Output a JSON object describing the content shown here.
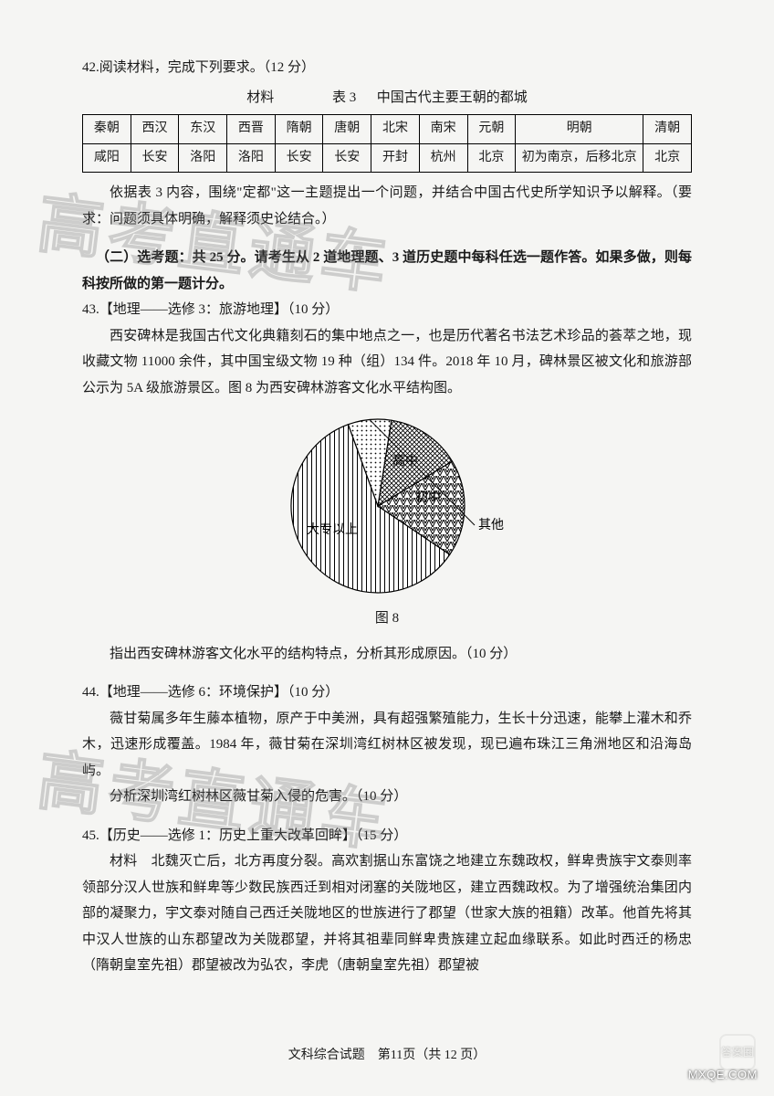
{
  "q42": {
    "stem": "42.阅读材料，完成下列要求。（12 分）",
    "mat_label": "材料",
    "table_label": "表 3",
    "table_title": "中国古代主要王朝的都城",
    "headers": [
      "秦朝",
      "西汉",
      "东汉",
      "西晋",
      "隋朝",
      "唐朝",
      "北宋",
      "南宋",
      "元朝",
      "明朝",
      "清朝"
    ],
    "row": [
      "咸阳",
      "长安",
      "洛阳",
      "洛阳",
      "长安",
      "长安",
      "开封",
      "杭州",
      "北京",
      "初为南京，后移北京",
      "北京"
    ],
    "para": "依据表 3 内容，围绕\"定都\"这一主题提出一个问题，并结合中国古代史所学知识予以解释。（要求：问题须具体明确，解释须史论结合。）"
  },
  "optional": {
    "title": "（二）选考题：共 25 分。请考生从 2 道地理题、3 道历史题中每科任选一题作答。如果多做，则每科按所做的第一题计分。"
  },
  "q43": {
    "stem": "43.【地理——选修 3：旅游地理】（10 分）",
    "para": "西安碑林是我国古代文化典籍刻石的集中地点之一，也是历代著名书法艺术珍品的荟萃之地，现收藏文物 11000 余件，其中国宝级文物 19 种（组）134 件。2018 年 10 月，碑林景区被文化和旅游部公示为 5A 级旅游景区。图 8 为西安碑林游客文化水平结构图。",
    "chart": {
      "type": "pie",
      "categories": [
        "大专以上",
        "高中",
        "初中",
        "其他"
      ],
      "values": [
        60,
        18,
        14,
        8
      ],
      "start_angle_deg": 110,
      "slice_patterns": [
        "vlines",
        "zigzag",
        "grid",
        "dots"
      ],
      "slice_angles_deg": [
        216,
        65,
        50,
        29
      ],
      "radius": 95,
      "stroke": "#000000",
      "background": "#ffffff"
    },
    "fig_label": "图 8",
    "ask": "指出西安碑林游客文化水平的结构特点，分析其形成原因。（10 分）"
  },
  "q44": {
    "stem": "44.【地理——选修 6：环境保护】（10 分）",
    "para": "薇甘菊属多年生藤本植物，原产于中美洲，具有超强繁殖能力，生长十分迅速，能攀上灌木和乔木，迅速形成覆盖。1984 年，薇甘菊在深圳湾红树林区被发现，现已遍布珠江三角洲地区和沿海岛屿。",
    "ask": "分析深圳湾红树林区薇甘菊入侵的危害。（10 分）"
  },
  "q45": {
    "stem": "45.【历史——选修 1：历史上重大改革回眸】（15 分）",
    "para": "材料　北魏灭亡后，北方再度分裂。高欢割据山东富饶之地建立东魏政权，鲜卑贵族宇文泰则率领部分汉人世族和鲜卑等少数民族西迁到相对闭塞的关陇地区，建立西魏政权。为了增强统治集团内部的凝聚力，宇文泰对随自己西迁关陇地区的世族进行了郡望（世家大族的祖籍）改革。他首先将其中汉人世族的山东郡望改为关陇郡望，并将其祖辈同鲜卑贵族建立起血缘联系。如此时西迁的杨忠（隋朝皇室先祖）郡望被改为弘农，李虎（唐朝皇室先祖）郡望被"
  },
  "footer": "文科综合试题　第11页（共 12 页）",
  "watermark": "高考直通车",
  "badges": {
    "answer": "答案圈",
    "site": "MXQE.COM"
  }
}
